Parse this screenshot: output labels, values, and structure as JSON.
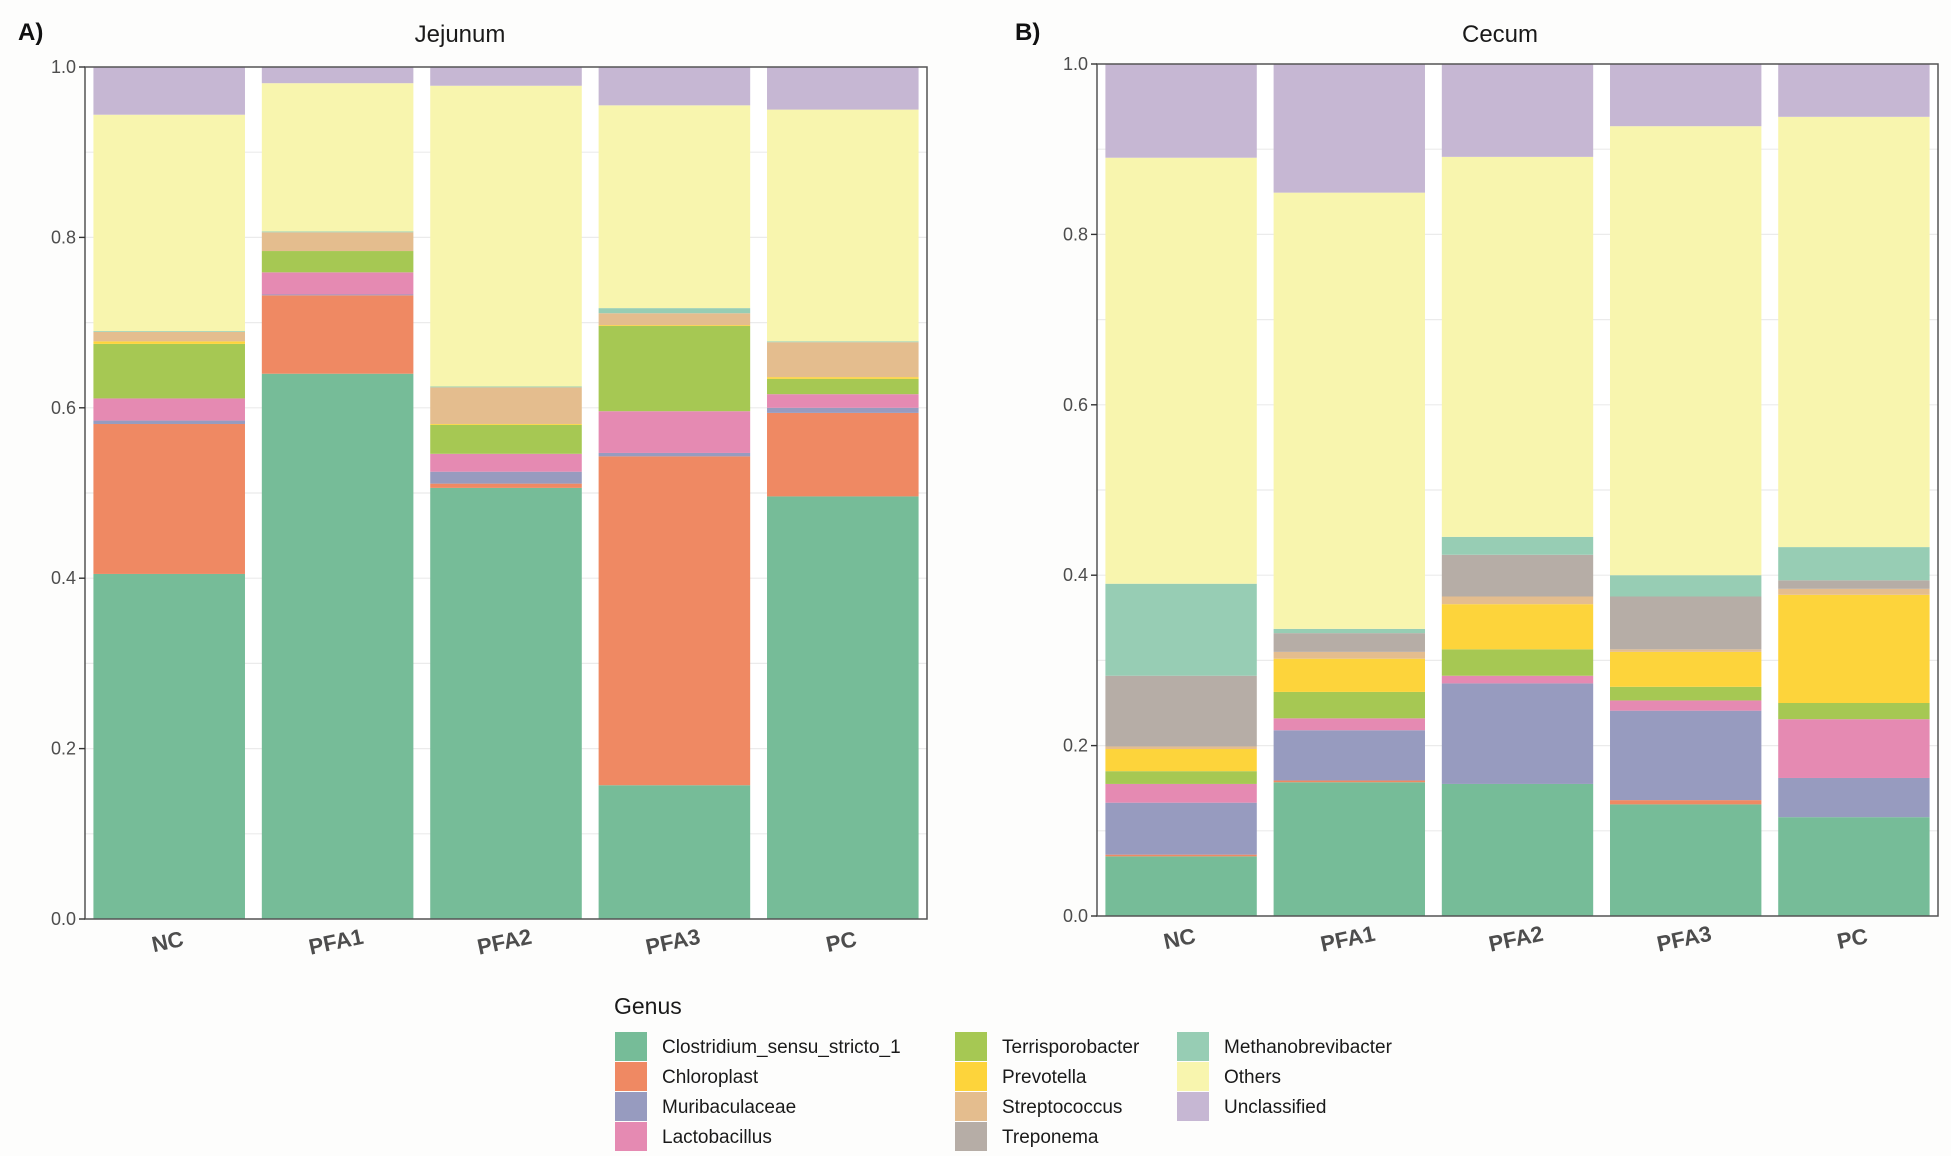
{
  "chart_data": [
    {
      "type": "bar",
      "stacked": true,
      "panel_tag": "A)",
      "title": "Jejunum",
      "xlabel": "",
      "ylabel": "",
      "ylim": [
        0,
        1.0
      ],
      "yticks": [
        "0.0",
        "0.2",
        "0.4",
        "0.6",
        "0.8",
        "1.0"
      ],
      "grid": true,
      "categories": [
        "NC",
        "PFA1",
        "PFA2",
        "PFA3",
        "PC"
      ],
      "series": [
        {
          "name": "Clostridium_sensu_stricto_1",
          "values": [
            0.405,
            0.64,
            0.506,
            0.157,
            0.496
          ]
        },
        {
          "name": "Chloroplast",
          "values": [
            0.176,
            0.092,
            0.005,
            0.386,
            0.098
          ]
        },
        {
          "name": "Muribaculaceae",
          "values": [
            0.004,
            0.001,
            0.014,
            0.004,
            0.006
          ]
        },
        {
          "name": "Lactobacillus",
          "values": [
            0.026,
            0.026,
            0.021,
            0.049,
            0.016
          ]
        },
        {
          "name": "Terrisporobacter",
          "values": [
            0.064,
            0.025,
            0.034,
            0.1,
            0.018
          ]
        },
        {
          "name": "Prevotella",
          "values": [
            0.003,
            0.0,
            0.001,
            0.001,
            0.002
          ]
        },
        {
          "name": "Streptococcus",
          "values": [
            0.011,
            0.022,
            0.043,
            0.014,
            0.041
          ]
        },
        {
          "name": "Treponema",
          "values": [
            0.0,
            0.0,
            0.0,
            0.0,
            0.0
          ]
        },
        {
          "name": "Methanobrevibacter",
          "values": [
            0.001,
            0.001,
            0.001,
            0.006,
            0.001
          ]
        },
        {
          "name": "Others",
          "values": [
            0.254,
            0.174,
            0.353,
            0.238,
            0.272
          ]
        },
        {
          "name": "Unclassified",
          "values": [
            0.056,
            0.019,
            0.022,
            0.045,
            0.05
          ]
        }
      ]
    },
    {
      "type": "bar",
      "stacked": true,
      "panel_tag": "B)",
      "title": "Cecum",
      "xlabel": "",
      "ylabel": "",
      "ylim": [
        0,
        1.0
      ],
      "yticks": [
        "0.0",
        "0.2",
        "0.4",
        "0.6",
        "0.8",
        "1.0"
      ],
      "grid": true,
      "categories": [
        "NC",
        "PFA1",
        "PFA2",
        "PFA3",
        "PC"
      ],
      "series": [
        {
          "name": "Clostridium_sensu_stricto_1",
          "values": [
            0.07,
            0.157,
            0.155,
            0.131,
            0.116
          ]
        },
        {
          "name": "Chloroplast",
          "values": [
            0.002,
            0.002,
            0.0,
            0.005,
            0.0
          ]
        },
        {
          "name": "Muribaculaceae",
          "values": [
            0.061,
            0.059,
            0.118,
            0.105,
            0.046
          ]
        },
        {
          "name": "Lactobacillus",
          "values": [
            0.022,
            0.014,
            0.009,
            0.012,
            0.069
          ]
        },
        {
          "name": "Terrisporobacter",
          "values": [
            0.015,
            0.031,
            0.031,
            0.016,
            0.019
          ]
        },
        {
          "name": "Prevotella",
          "values": [
            0.026,
            0.039,
            0.053,
            0.041,
            0.127
          ]
        },
        {
          "name": "Streptococcus",
          "values": [
            0.003,
            0.008,
            0.009,
            0.003,
            0.007
          ]
        },
        {
          "name": "Treponema",
          "values": [
            0.083,
            0.022,
            0.049,
            0.062,
            0.01
          ]
        },
        {
          "name": "Methanobrevibacter",
          "values": [
            0.108,
            0.005,
            0.021,
            0.025,
            0.039
          ]
        },
        {
          "name": "Others",
          "values": [
            0.5,
            0.512,
            0.446,
            0.527,
            0.505
          ]
        },
        {
          "name": "Unclassified",
          "values": [
            0.11,
            0.151,
            0.109,
            0.073,
            0.062
          ]
        }
      ]
    }
  ],
  "legend": {
    "title": "Genus",
    "position": "bottom",
    "items": [
      {
        "name": "Clostridium_sensu_stricto_1",
        "color": "#76BC98"
      },
      {
        "name": "Chloroplast",
        "color": "#EF8963"
      },
      {
        "name": "Muribaculaceae",
        "color": "#979BBF"
      },
      {
        "name": "Lactobacillus",
        "color": "#E58AB2"
      },
      {
        "name": "Terrisporobacter",
        "color": "#A6C853"
      },
      {
        "name": "Prevotella",
        "color": "#FDD43B"
      },
      {
        "name": "Streptococcus",
        "color": "#E4BD8E"
      },
      {
        "name": "Treponema",
        "color": "#B6ADA6"
      },
      {
        "name": "Methanobrevibacter",
        "color": "#97CDB4"
      },
      {
        "name": "Others",
        "color": "#F8F5AE"
      },
      {
        "name": "Unclassified",
        "color": "#C6B7D3"
      }
    ]
  }
}
